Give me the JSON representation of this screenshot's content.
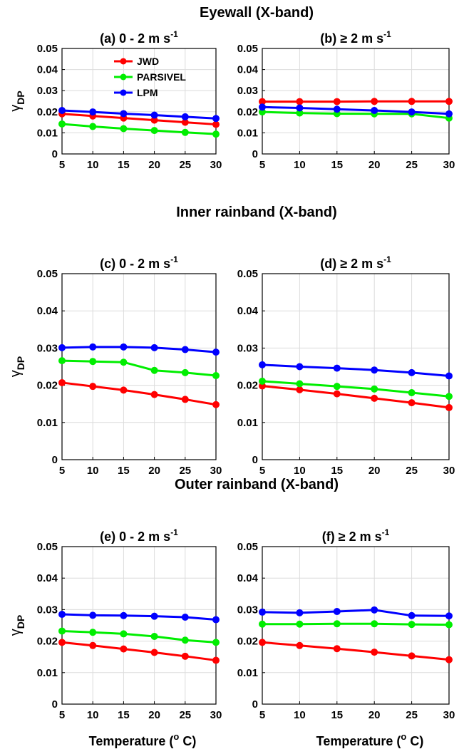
{
  "row_titles": [
    "Eyewall (X-band)",
    "Inner rainband (X-band)",
    "Outer rainband (X-band)"
  ],
  "ylabel_main": "γ",
  "ylabel_sub": "DP",
  "xlabel_text": "Temperature (",
  "xlabel_sup": "o",
  "xlabel_end": " C)",
  "colors": {
    "JWD": "#ff0000",
    "PARSIVEL": "#00ee00",
    "LPM": "#0000ff"
  },
  "chart_data": [
    {
      "type": "line",
      "panel": "a",
      "title": "(a) 0 - 2 m s",
      "title_sup": "-1",
      "x": [
        5,
        10,
        15,
        20,
        25,
        30
      ],
      "xlim": [
        5,
        30
      ],
      "ylim": [
        0,
        0.05
      ],
      "xticks": [
        "5",
        "10",
        "15",
        "20",
        "25",
        "30"
      ],
      "yticks": [
        "0",
        "0.01",
        "0.02",
        "0.03",
        "0.04",
        "0.05"
      ],
      "grid": true,
      "legend": "top-left",
      "series": [
        {
          "name": "JWD",
          "values": [
            0.019,
            0.018,
            0.017,
            0.016,
            0.015,
            0.014
          ]
        },
        {
          "name": "PARSIVEL",
          "values": [
            0.0142,
            0.013,
            0.012,
            0.0111,
            0.0102,
            0.0094
          ]
        },
        {
          "name": "LPM",
          "values": [
            0.0206,
            0.0199,
            0.0191,
            0.0184,
            0.0176,
            0.0168
          ]
        }
      ]
    },
    {
      "type": "line",
      "panel": "b",
      "title": "(b) ≥ 2 m s",
      "title_sup": "-1",
      "x": [
        5,
        10,
        15,
        20,
        25,
        30
      ],
      "xlim": [
        5,
        30
      ],
      "ylim": [
        0,
        0.05
      ],
      "xticks": [
        "5",
        "10",
        "15",
        "20",
        "25",
        "30"
      ],
      "yticks": [
        "0",
        "0.01",
        "0.02",
        "0.03",
        "0.04",
        "0.05"
      ],
      "grid": true,
      "series": [
        {
          "name": "JWD",
          "values": [
            0.0248,
            0.0248,
            0.0248,
            0.0249,
            0.0249,
            0.0249
          ]
        },
        {
          "name": "PARSIVEL",
          "values": [
            0.0199,
            0.0194,
            0.0191,
            0.019,
            0.019,
            0.017
          ]
        },
        {
          "name": "LPM",
          "values": [
            0.0222,
            0.0218,
            0.0212,
            0.0206,
            0.0199,
            0.019
          ]
        }
      ]
    },
    {
      "type": "line",
      "panel": "c",
      "title": "(c) 0 - 2 m s",
      "title_sup": "-1",
      "x": [
        5,
        10,
        15,
        20,
        25,
        30
      ],
      "xlim": [
        5,
        30
      ],
      "ylim": [
        0,
        0.05
      ],
      "xticks": [
        "5",
        "10",
        "15",
        "20",
        "25",
        "30"
      ],
      "yticks": [
        "0",
        "0.01",
        "0.02",
        "0.03",
        "0.04",
        "0.05"
      ],
      "grid": true,
      "series": [
        {
          "name": "JWD",
          "values": [
            0.0207,
            0.0197,
            0.0187,
            0.0175,
            0.0162,
            0.0148
          ]
        },
        {
          "name": "PARSIVEL",
          "values": [
            0.0266,
            0.0264,
            0.0262,
            0.024,
            0.0234,
            0.0226
          ]
        },
        {
          "name": "LPM",
          "values": [
            0.0301,
            0.0303,
            0.0303,
            0.0301,
            0.0296,
            0.0289
          ]
        }
      ]
    },
    {
      "type": "line",
      "panel": "d",
      "title": "(d) ≥ 2 m s",
      "title_sup": "-1",
      "x": [
        5,
        10,
        15,
        20,
        25,
        30
      ],
      "xlim": [
        5,
        30
      ],
      "ylim": [
        0,
        0.05
      ],
      "xticks": [
        "5",
        "10",
        "15",
        "20",
        "25",
        "30"
      ],
      "yticks": [
        "0",
        "0.01",
        "0.02",
        "0.03",
        "0.04",
        "0.05"
      ],
      "grid": true,
      "series": [
        {
          "name": "JWD",
          "values": [
            0.0198,
            0.0188,
            0.0177,
            0.0165,
            0.0153,
            0.014
          ]
        },
        {
          "name": "PARSIVEL",
          "values": [
            0.0211,
            0.0204,
            0.0197,
            0.019,
            0.018,
            0.017
          ]
        },
        {
          "name": "LPM",
          "values": [
            0.0255,
            0.025,
            0.0246,
            0.0241,
            0.0234,
            0.0225
          ]
        }
      ]
    },
    {
      "type": "line",
      "panel": "e",
      "title": "(e) 0 - 2 m s",
      "title_sup": "-1",
      "x": [
        5,
        10,
        15,
        20,
        25,
        30
      ],
      "xlim": [
        5,
        30
      ],
      "ylim": [
        0,
        0.05
      ],
      "xticks": [
        "5",
        "10",
        "15",
        "20",
        "25",
        "30"
      ],
      "yticks": [
        "0",
        "0.01",
        "0.02",
        "0.03",
        "0.04",
        "0.05"
      ],
      "grid": true,
      "series": [
        {
          "name": "JWD",
          "values": [
            0.0196,
            0.0186,
            0.0175,
            0.0164,
            0.0152,
            0.0139
          ]
        },
        {
          "name": "PARSIVEL",
          "values": [
            0.0232,
            0.0228,
            0.0223,
            0.0215,
            0.0203,
            0.0196
          ]
        },
        {
          "name": "LPM",
          "values": [
            0.0285,
            0.0282,
            0.0281,
            0.0279,
            0.0276,
            0.0268
          ]
        }
      ]
    },
    {
      "type": "line",
      "panel": "f",
      "title": "(f) ≥ 2 m s",
      "title_sup": "-1",
      "x": [
        5,
        10,
        15,
        20,
        25,
        30
      ],
      "xlim": [
        5,
        30
      ],
      "ylim": [
        0,
        0.05
      ],
      "xticks": [
        "5",
        "10",
        "15",
        "20",
        "25",
        "30"
      ],
      "yticks": [
        "0",
        "0.01",
        "0.02",
        "0.03",
        "0.04",
        "0.05"
      ],
      "grid": true,
      "series": [
        {
          "name": "JWD",
          "values": [
            0.0196,
            0.0186,
            0.0176,
            0.0165,
            0.0153,
            0.0141
          ]
        },
        {
          "name": "PARSIVEL",
          "values": [
            0.0254,
            0.0254,
            0.0255,
            0.0255,
            0.0253,
            0.0252
          ]
        },
        {
          "name": "LPM",
          "values": [
            0.0292,
            0.029,
            0.0294,
            0.0299,
            0.0281,
            0.028
          ]
        }
      ]
    }
  ]
}
